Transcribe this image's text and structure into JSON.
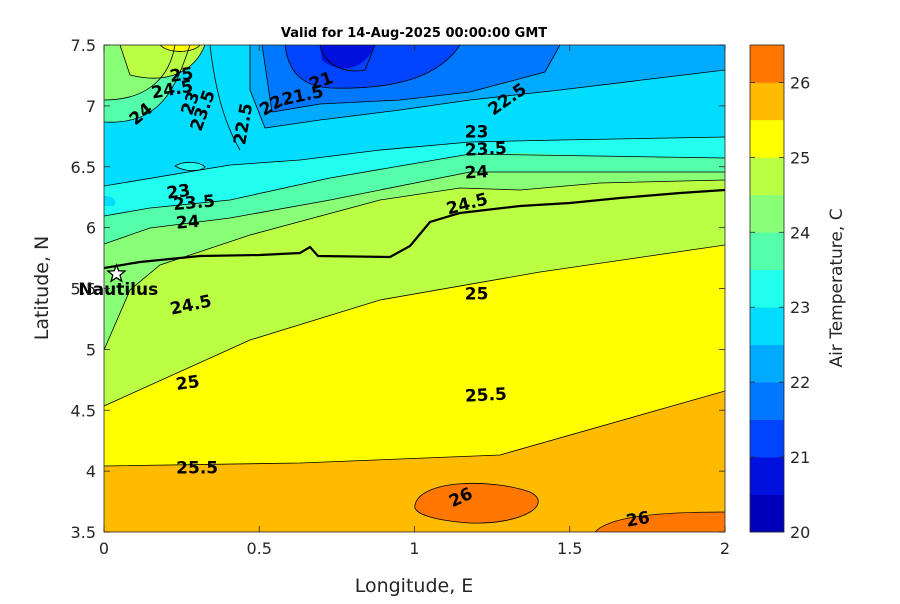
{
  "chart_data": {
    "type": "contour",
    "title": "Valid for 14-Aug-2025 00:00:00 GMT",
    "xlabel": "Longitude, E",
    "ylabel": "Latitude, N",
    "xlim": [
      0,
      2
    ],
    "ylim": [
      3.5,
      7.5
    ],
    "xticks": [
      "0",
      "0.5",
      "1",
      "1.5",
      "2"
    ],
    "yticks": [
      "3.5",
      "4",
      "4.5",
      "5",
      "5.5",
      "6",
      "6.5",
      "7",
      "7.5"
    ],
    "colorbar": {
      "label": "Air Temperature, C",
      "range": [
        20,
        26.5
      ],
      "ticks": [
        "20",
        "21",
        "22",
        "23",
        "24",
        "25",
        "26"
      ],
      "levels": [
        20,
        20.5,
        21,
        21.5,
        22,
        22.5,
        23,
        23.5,
        24,
        24.5,
        25,
        25.5,
        26,
        26.5
      ],
      "colors": [
        "#0000bb",
        "#0011dd",
        "#0044ff",
        "#0077ff",
        "#00aaff",
        "#00ddff",
        "#22ffee",
        "#55ffaa",
        "#88ff77",
        "#bbff44",
        "#ffff00",
        "#ffbb00",
        "#ff7700",
        "#ff4400",
        "#ff0000"
      ]
    },
    "station": {
      "name": "Nautilus",
      "lon": 0.04,
      "lat": 5.62
    },
    "contour_labels": [
      {
        "text": "25",
        "lon": 0.25,
        "lat": 7.25,
        "rot": -8
      },
      {
        "text": "24.5",
        "lon": 0.22,
        "lat": 7.13,
        "rot": -10
      },
      {
        "text": "24",
        "lon": 0.12,
        "lat": 6.93,
        "rot": -40
      },
      {
        "text": "23.5",
        "lon": 0.32,
        "lat": 6.96,
        "rot": -70
      },
      {
        "text": "23",
        "lon": 0.28,
        "lat": 7.02,
        "rot": -70
      },
      {
        "text": "22.5",
        "lon": 0.45,
        "lat": 6.85,
        "rot": -80
      },
      {
        "text": "22",
        "lon": 0.54,
        "lat": 7.0,
        "rot": -30
      },
      {
        "text": "21.5",
        "lon": 0.64,
        "lat": 7.08,
        "rot": -12
      },
      {
        "text": "21",
        "lon": 0.7,
        "lat": 7.2,
        "rot": -20
      },
      {
        "text": "22.5",
        "lon": 1.3,
        "lat": 7.05,
        "rot": -35
      },
      {
        "text": "23",
        "lon": 1.2,
        "lat": 6.78,
        "rot": 0
      },
      {
        "text": "23.5",
        "lon": 1.23,
        "lat": 6.64,
        "rot": -3
      },
      {
        "text": "24",
        "lon": 1.2,
        "lat": 6.45,
        "rot": -4
      },
      {
        "text": "23",
        "lon": 0.24,
        "lat": 6.29,
        "rot": -8
      },
      {
        "text": "23.5",
        "lon": 0.29,
        "lat": 6.2,
        "rot": -5
      },
      {
        "text": "24",
        "lon": 0.27,
        "lat": 6.04,
        "rot": -5
      },
      {
        "text": "24.5",
        "lon": 1.17,
        "lat": 6.19,
        "rot": -15
      },
      {
        "text": "24.5",
        "lon": 0.28,
        "lat": 5.36,
        "rot": -12
      },
      {
        "text": "25",
        "lon": 1.2,
        "lat": 5.45,
        "rot": 0
      },
      {
        "text": "25",
        "lon": 0.27,
        "lat": 4.72,
        "rot": -8
      },
      {
        "text": "25.5",
        "lon": 1.23,
        "lat": 4.62,
        "rot": -3
      },
      {
        "text": "25.5",
        "lon": 0.3,
        "lat": 4.02,
        "rot": 0
      },
      {
        "text": "26",
        "lon": 1.15,
        "lat": 3.78,
        "rot": -25
      },
      {
        "text": "26",
        "lon": 1.72,
        "lat": 3.6,
        "rot": -10
      }
    ]
  }
}
